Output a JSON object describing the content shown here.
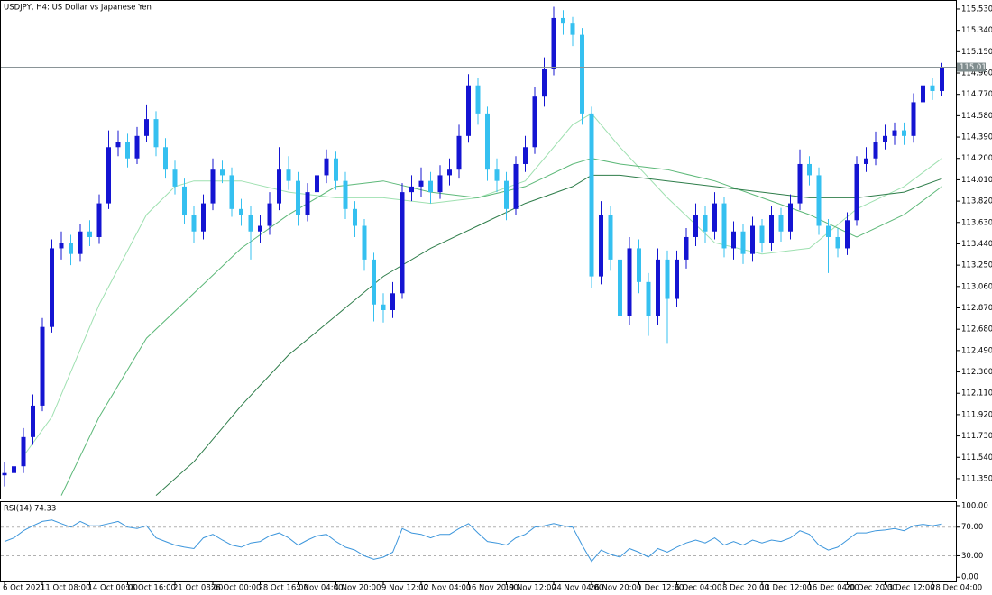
{
  "chart_data": [
    {
      "type": "candlestick",
      "title": "USDJPY, H4:  US Dollar vs Japanese Yen",
      "categories": [
        "6 Oct 2021",
        null,
        null,
        null,
        "11 Oct 08:00",
        null,
        null,
        null,
        null,
        "14 Oct 00:00",
        null,
        null,
        null,
        "18 Oct 16:00",
        null,
        null,
        null,
        null,
        "21 Oct 08:00",
        null,
        null,
        null,
        "26 Oct 00:00",
        null,
        null,
        null,
        null,
        "28 Oct 16:00",
        null,
        null,
        null,
        "2 Nov 04:00",
        null,
        null,
        null,
        "4 Nov 20:00",
        null,
        null,
        null,
        null,
        "9 Nov 12:00",
        null,
        null,
        null,
        "12 Nov 04:00",
        null,
        null,
        null,
        null,
        "16 Nov 20:00",
        null,
        null,
        null,
        "19 Nov 12:00",
        null,
        null,
        null,
        null,
        "24 Nov 04:00",
        null,
        null,
        null,
        "26 Nov 20:00",
        null,
        null,
        null,
        null,
        "1 Dec 12:00",
        null,
        null,
        null,
        "6 Dec 04:00",
        null,
        null,
        null,
        null,
        "8 Dec 20:00",
        null,
        null,
        null,
        "13 Dec 12:00",
        null,
        null,
        null,
        null,
        "16 Dec 04:00",
        null,
        null,
        null,
        "20 Dec 20:00",
        null,
        null,
        null,
        "23 Dec 12:00",
        null,
        null,
        null,
        null,
        "28 Dec 04:00",
        null
      ],
      "open": [
        111.38,
        111.4,
        111.46,
        111.72,
        112.0,
        112.7,
        113.4,
        113.45,
        113.35,
        113.55,
        113.5,
        113.8,
        114.3,
        114.35,
        114.2,
        114.4,
        114.55,
        114.3,
        114.1,
        113.95,
        113.7,
        113.55,
        113.8,
        114.1,
        114.05,
        113.75,
        113.7,
        113.55,
        113.6,
        113.8,
        114.1,
        114.0,
        113.7,
        113.9,
        114.05,
        114.2,
        114.0,
        113.75,
        113.6,
        113.3,
        112.9,
        112.85,
        113.0,
        113.9,
        113.95,
        114.0,
        113.9,
        114.05,
        114.1,
        114.4,
        114.85,
        114.6,
        114.1,
        114.0,
        113.75,
        114.15,
        114.3,
        114.75,
        115.0,
        115.45,
        115.4,
        115.3,
        114.6,
        113.15,
        113.7,
        113.3,
        112.8,
        113.4,
        113.1,
        112.8,
        113.3,
        112.95,
        113.3,
        113.5,
        113.7,
        113.55,
        113.8,
        113.4,
        113.55,
        113.35,
        113.6,
        113.45,
        113.7,
        113.55,
        113.8,
        114.15,
        114.05,
        113.6,
        113.5,
        113.4,
        113.65,
        114.15,
        114.2,
        114.35,
        114.4,
        114.45,
        114.4,
        114.7,
        114.85,
        114.8
      ],
      "high": [
        111.5,
        111.55,
        111.8,
        112.1,
        112.78,
        113.48,
        113.55,
        113.52,
        113.62,
        113.65,
        113.88,
        114.45,
        114.45,
        114.42,
        114.48,
        114.68,
        114.62,
        114.38,
        114.18,
        114.02,
        113.78,
        113.88,
        114.2,
        114.18,
        114.12,
        113.84,
        113.78,
        113.7,
        113.9,
        114.3,
        114.22,
        114.08,
        113.98,
        114.15,
        114.28,
        114.26,
        114.08,
        113.82,
        113.66,
        113.36,
        113.0,
        113.1,
        113.98,
        114.05,
        114.12,
        114.08,
        114.14,
        114.2,
        114.5,
        114.95,
        114.92,
        114.66,
        114.2,
        114.08,
        114.22,
        114.4,
        114.84,
        115.1,
        115.55,
        115.52,
        115.46,
        115.36,
        114.66,
        113.82,
        113.78,
        113.38,
        113.5,
        113.48,
        113.18,
        113.4,
        113.38,
        113.38,
        113.58,
        113.8,
        113.78,
        113.9,
        113.86,
        113.64,
        113.62,
        113.68,
        113.66,
        113.78,
        113.76,
        113.88,
        114.28,
        114.22,
        114.12,
        113.66,
        113.58,
        113.72,
        114.22,
        114.3,
        114.44,
        114.5,
        114.52,
        114.52,
        114.78,
        114.95,
        114.92,
        115.05
      ],
      "low": [
        111.28,
        111.32,
        111.4,
        111.65,
        111.95,
        112.65,
        113.3,
        113.25,
        113.28,
        113.42,
        113.44,
        113.75,
        114.22,
        114.12,
        114.15,
        114.35,
        114.22,
        114.02,
        113.88,
        113.62,
        113.45,
        113.48,
        113.74,
        113.98,
        113.68,
        113.6,
        113.3,
        113.45,
        113.52,
        113.74,
        113.92,
        113.6,
        113.64,
        113.84,
        113.98,
        113.92,
        113.66,
        113.5,
        113.2,
        112.75,
        112.74,
        112.78,
        112.95,
        113.82,
        113.86,
        113.8,
        113.84,
        113.96,
        114.02,
        114.34,
        114.5,
        114.0,
        113.9,
        113.65,
        113.7,
        114.08,
        114.24,
        114.66,
        114.94,
        115.3,
        115.2,
        114.5,
        113.05,
        113.08,
        113.2,
        112.55,
        112.72,
        113.0,
        112.62,
        112.72,
        112.55,
        112.88,
        113.22,
        113.42,
        113.45,
        113.48,
        113.32,
        113.3,
        113.26,
        113.28,
        113.36,
        113.38,
        113.46,
        113.48,
        113.74,
        113.96,
        113.52,
        113.18,
        113.32,
        113.34,
        113.6,
        114.08,
        114.14,
        114.28,
        114.32,
        114.32,
        114.34,
        114.64,
        114.72,
        114.76
      ],
      "close": [
        111.4,
        111.46,
        111.72,
        112.0,
        112.7,
        113.4,
        113.45,
        113.35,
        113.55,
        113.5,
        113.8,
        114.3,
        114.35,
        114.2,
        114.4,
        114.55,
        114.3,
        114.1,
        113.95,
        113.7,
        113.55,
        113.8,
        114.1,
        114.05,
        113.75,
        113.7,
        113.55,
        113.6,
        113.8,
        114.1,
        114.0,
        113.7,
        113.9,
        114.05,
        114.2,
        114.0,
        113.75,
        113.6,
        113.3,
        112.9,
        112.85,
        113.0,
        113.9,
        113.95,
        114.0,
        113.9,
        114.05,
        114.1,
        114.4,
        114.85,
        114.6,
        114.1,
        114.0,
        113.75,
        114.15,
        114.3,
        114.75,
        115.0,
        115.45,
        115.4,
        115.3,
        114.6,
        113.15,
        113.7,
        113.3,
        112.8,
        113.4,
        113.1,
        112.8,
        113.3,
        112.95,
        113.3,
        113.5,
        113.7,
        113.55,
        113.8,
        113.4,
        113.55,
        113.35,
        113.6,
        113.45,
        113.7,
        113.55,
        113.8,
        114.15,
        114.05,
        113.6,
        113.5,
        113.4,
        113.65,
        114.15,
        114.2,
        114.35,
        114.4,
        114.45,
        114.4,
        114.7,
        114.85,
        114.8,
        115.01
      ],
      "up_color": "#1414d2",
      "down_color": "#35c0f0",
      "lines": [
        {
          "color": "#9ee0b0",
          "x": [
            2,
            5,
            10,
            15,
            18,
            20,
            25,
            30,
            35,
            40,
            45,
            50,
            55,
            60,
            62,
            65,
            70,
            75,
            80,
            85,
            90,
            95,
            99
          ],
          "values": [
            111.55,
            111.9,
            112.9,
            113.7,
            113.95,
            114.0,
            114.0,
            113.9,
            113.85,
            113.85,
            113.8,
            113.85,
            114.0,
            114.5,
            114.6,
            114.3,
            113.85,
            113.45,
            113.35,
            113.4,
            113.75,
            113.95,
            114.2
          ]
        },
        {
          "color": "#5cb878",
          "x": [
            6,
            10,
            15,
            20,
            25,
            30,
            35,
            40,
            45,
            50,
            55,
            60,
            62,
            65,
            70,
            75,
            80,
            85,
            90,
            95,
            99
          ],
          "values": [
            111.2,
            111.9,
            112.6,
            113.0,
            113.4,
            113.7,
            113.95,
            114.0,
            113.9,
            113.85,
            113.95,
            114.15,
            114.2,
            114.15,
            114.1,
            114.0,
            113.85,
            113.7,
            113.5,
            113.7,
            113.95
          ]
        },
        {
          "color": "#2e7d4a",
          "x": [
            16,
            20,
            25,
            30,
            35,
            40,
            45,
            50,
            55,
            60,
            62,
            65,
            70,
            75,
            80,
            85,
            90,
            95,
            99
          ],
          "values": [
            111.2,
            111.5,
            112.0,
            112.45,
            112.8,
            113.15,
            113.4,
            113.6,
            113.8,
            113.95,
            114.05,
            114.05,
            114.0,
            113.95,
            113.9,
            113.85,
            113.85,
            113.9,
            114.02
          ]
        }
      ],
      "ylim": [
        111.173,
        115.594
      ],
      "yticks": [
        {
          "value": 115.53,
          "label": "115.530"
        },
        {
          "value": 115.34,
          "label": "115.340"
        },
        {
          "value": 115.15,
          "label": "115.150"
        },
        {
          "value": 114.96,
          "label": "114.960"
        },
        {
          "value": 114.77,
          "label": "114.770"
        },
        {
          "value": 114.58,
          "label": "114.580"
        },
        {
          "value": 114.39,
          "label": "114.390"
        },
        {
          "value": 114.2,
          "label": "114.200"
        },
        {
          "value": 114.01,
          "label": "114.010"
        },
        {
          "value": 113.82,
          "label": "113.820"
        },
        {
          "value": 113.63,
          "label": "113.630"
        },
        {
          "value": 113.44,
          "label": "113.440"
        },
        {
          "value": 113.25,
          "label": "113.250"
        },
        {
          "value": 113.06,
          "label": "113.060"
        },
        {
          "value": 112.87,
          "label": "112.870"
        },
        {
          "value": 112.68,
          "label": "112.680"
        },
        {
          "value": 112.49,
          "label": "112.490"
        },
        {
          "value": 112.3,
          "label": "112.300"
        },
        {
          "value": 112.11,
          "label": "112.110"
        },
        {
          "value": 111.92,
          "label": "111.920"
        },
        {
          "value": 111.73,
          "label": "111.730"
        },
        {
          "value": 111.54,
          "label": "111.540"
        },
        {
          "value": 111.35,
          "label": "111.350"
        }
      ],
      "last_price": 115.012,
      "grid": false
    },
    {
      "type": "line",
      "title": "RSI(14) 74.33",
      "color": "#3c96dc",
      "values": [
        50,
        55,
        65,
        72,
        78,
        80,
        75,
        70,
        78,
        72,
        72,
        75,
        78,
        70,
        68,
        72,
        55,
        50,
        45,
        42,
        40,
        55,
        60,
        52,
        45,
        42,
        48,
        50,
        58,
        62,
        55,
        45,
        52,
        58,
        60,
        50,
        42,
        38,
        30,
        25,
        28,
        35,
        68,
        62,
        60,
        55,
        60,
        60,
        68,
        75,
        62,
        50,
        48,
        45,
        55,
        60,
        70,
        72,
        75,
        72,
        70,
        45,
        22,
        38,
        32,
        28,
        40,
        35,
        28,
        40,
        35,
        42,
        48,
        52,
        48,
        55,
        45,
        50,
        45,
        52,
        48,
        52,
        50,
        55,
        65,
        60,
        45,
        38,
        42,
        52,
        62,
        62,
        65,
        66,
        68,
        65,
        72,
        74,
        72,
        74.33
      ],
      "ylim": [
        -6,
        105
      ],
      "yticks": [
        {
          "value": 100,
          "label": "100.00"
        },
        {
          "value": 70,
          "label": "70.00"
        },
        {
          "value": 30,
          "label": "30.00"
        },
        {
          "value": 0,
          "label": "0.00"
        }
      ],
      "levels": [
        70,
        30
      ]
    }
  ]
}
